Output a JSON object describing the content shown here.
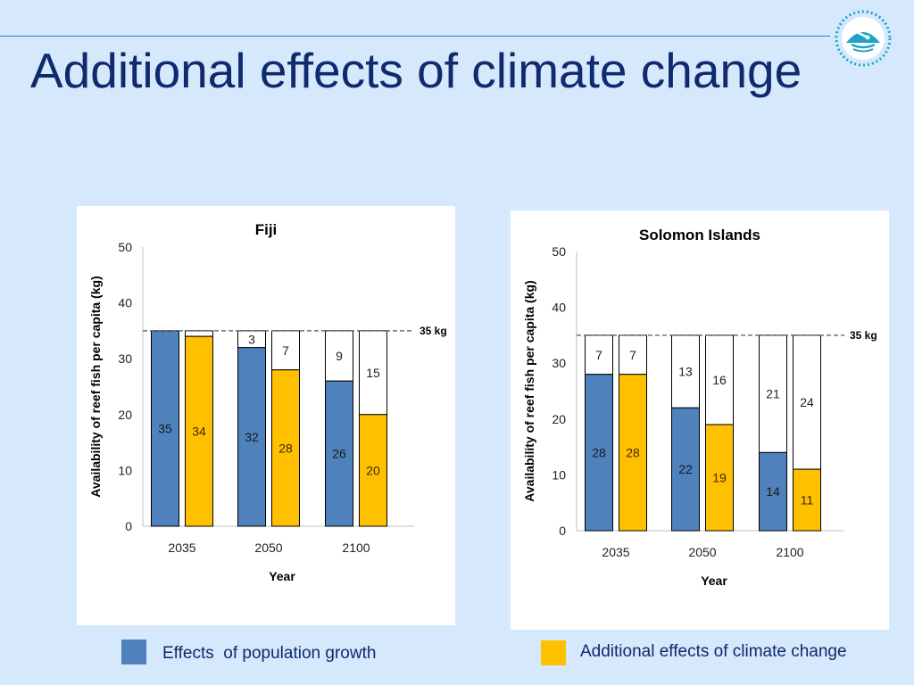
{
  "slide": {
    "title": "Additional effects of climate change"
  },
  "colors": {
    "background": "#d6e8fb",
    "title": "#0f2a6e",
    "population": "#4f81bd",
    "climate": "#ffc000",
    "remainder": "#ffffff",
    "reference_line": "#555555"
  },
  "icons": {
    "logo": "spc-pacific-logo-icon"
  },
  "legend": {
    "population_label": "Effects  of population growth",
    "climate_label": "Additional effects of climate change"
  },
  "chart_data": [
    {
      "type": "bar",
      "stacked": true,
      "title": "Fiji",
      "xlabel": "Year",
      "ylabel": "Availability of reef fish per capita (kg)",
      "ylim": [
        0,
        50
      ],
      "yticks": [
        0,
        10,
        20,
        30,
        40,
        50
      ],
      "groups": [
        "2035",
        "2050",
        "2100"
      ],
      "reference": {
        "value": 35,
        "label": "35 kg"
      },
      "bars": [
        {
          "group": "2035",
          "kind": "population",
          "value": 35,
          "remainder": 0,
          "remainder_label": ""
        },
        {
          "group": "2035",
          "kind": "climate",
          "value": 34,
          "remainder": 1,
          "remainder_label": ""
        },
        {
          "group": "2050",
          "kind": "population",
          "value": 32,
          "remainder": 3,
          "remainder_label": "3"
        },
        {
          "group": "2050",
          "kind": "climate",
          "value": 28,
          "remainder": 7,
          "remainder_label": "7"
        },
        {
          "group": "2100",
          "kind": "population",
          "value": 26,
          "remainder": 9,
          "remainder_label": "9"
        },
        {
          "group": "2100",
          "kind": "climate",
          "value": 20,
          "remainder": 15,
          "remainder_label": "15"
        }
      ]
    },
    {
      "type": "bar",
      "stacked": true,
      "title": "Solomon Islands",
      "xlabel": "Year",
      "ylabel": "Availability of reef fish per capita (kg)",
      "ylim": [
        0,
        50
      ],
      "yticks": [
        0,
        10,
        20,
        30,
        40,
        50
      ],
      "groups": [
        "2035",
        "2050",
        "2100"
      ],
      "reference": {
        "value": 35,
        "label": "35 kg"
      },
      "bars": [
        {
          "group": "2035",
          "kind": "population",
          "value": 28,
          "remainder": 7,
          "remainder_label": "7"
        },
        {
          "group": "2035",
          "kind": "climate",
          "value": 28,
          "remainder": 7,
          "remainder_label": "7"
        },
        {
          "group": "2050",
          "kind": "population",
          "value": 22,
          "remainder": 13,
          "remainder_label": "13"
        },
        {
          "group": "2050",
          "kind": "climate",
          "value": 19,
          "remainder": 16,
          "remainder_label": "16"
        },
        {
          "group": "2100",
          "kind": "population",
          "value": 14,
          "remainder": 21,
          "remainder_label": "21"
        },
        {
          "group": "2100",
          "kind": "climate",
          "value": 11,
          "remainder": 24,
          "remainder_label": "24"
        }
      ]
    }
  ]
}
